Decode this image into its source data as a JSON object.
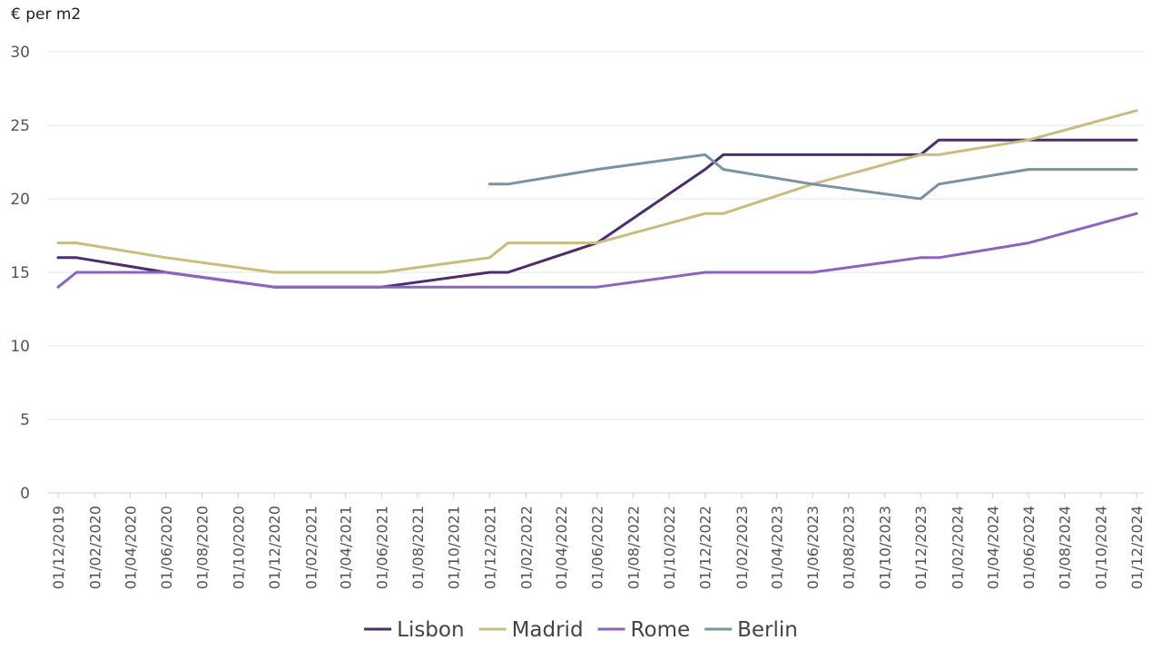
{
  "chart_data": {
    "type": "line",
    "ylabel": "€ per m2",
    "ylim": [
      0,
      30
    ],
    "yticks": [
      "0",
      "5",
      "10",
      "15",
      "20",
      "25",
      "30"
    ],
    "grid": true,
    "legend_position": "bottom",
    "x_tick_labels": [
      "01/12/2019",
      "01/02/2020",
      "01/04/2020",
      "01/06/2020",
      "01/08/2020",
      "01/10/2020",
      "01/12/2020",
      "01/02/2021",
      "01/04/2021",
      "01/06/2021",
      "01/08/2021",
      "01/10/2021",
      "01/12/2021",
      "01/02/2022",
      "01/04/2022",
      "01/06/2022",
      "01/08/2022",
      "01/10/2022",
      "01/12/2022",
      "01/02/2023",
      "01/04/2023",
      "01/06/2023",
      "01/08/2023",
      "01/10/2023",
      "01/12/2023",
      "01/02/2024",
      "01/04/2024",
      "01/06/2024",
      "01/08/2024",
      "01/10/2024",
      "01/12/2024"
    ],
    "series": [
      {
        "name": "Lisbon",
        "color": "#4d2c6b",
        "points": [
          {
            "x": "01/12/2019",
            "y": 16
          },
          {
            "x": "01/01/2020",
            "y": 16
          },
          {
            "x": "01/06/2020",
            "y": 15
          },
          {
            "x": "01/12/2020",
            "y": 14
          },
          {
            "x": "01/06/2021",
            "y": 14
          },
          {
            "x": "01/12/2021",
            "y": 15
          },
          {
            "x": "01/01/2022",
            "y": 15
          },
          {
            "x": "01/06/2022",
            "y": 17
          },
          {
            "x": "01/12/2022",
            "y": 22
          },
          {
            "x": "01/01/2023",
            "y": 23
          },
          {
            "x": "01/12/2023",
            "y": 23
          },
          {
            "x": "01/01/2024",
            "y": 24
          },
          {
            "x": "01/12/2024",
            "y": 24
          }
        ]
      },
      {
        "name": "Madrid",
        "color": "#c9bd7e",
        "points": [
          {
            "x": "01/12/2019",
            "y": 17
          },
          {
            "x": "01/01/2020",
            "y": 17
          },
          {
            "x": "01/06/2020",
            "y": 16
          },
          {
            "x": "01/12/2020",
            "y": 15
          },
          {
            "x": "01/06/2021",
            "y": 15
          },
          {
            "x": "01/12/2021",
            "y": 16
          },
          {
            "x": "01/01/2022",
            "y": 17
          },
          {
            "x": "01/06/2022",
            "y": 17
          },
          {
            "x": "01/12/2022",
            "y": 19
          },
          {
            "x": "01/01/2023",
            "y": 19
          },
          {
            "x": "01/06/2023",
            "y": 21
          },
          {
            "x": "01/12/2023",
            "y": 23
          },
          {
            "x": "01/01/2024",
            "y": 23
          },
          {
            "x": "01/06/2024",
            "y": 24
          },
          {
            "x": "01/12/2024",
            "y": 26
          }
        ]
      },
      {
        "name": "Rome",
        "color": "#8e62c2",
        "points": [
          {
            "x": "01/12/2019",
            "y": 14
          },
          {
            "x": "01/01/2020",
            "y": 15
          },
          {
            "x": "01/06/2020",
            "y": 15
          },
          {
            "x": "01/12/2020",
            "y": 14
          },
          {
            "x": "01/06/2022",
            "y": 14
          },
          {
            "x": "01/12/2022",
            "y": 15
          },
          {
            "x": "01/06/2023",
            "y": 15
          },
          {
            "x": "01/12/2023",
            "y": 16
          },
          {
            "x": "01/01/2024",
            "y": 16
          },
          {
            "x": "01/06/2024",
            "y": 17
          },
          {
            "x": "01/12/2024",
            "y": 19
          }
        ]
      },
      {
        "name": "Berlin",
        "color": "#7a93a3",
        "points": [
          {
            "x": "01/12/2021",
            "y": 21
          },
          {
            "x": "01/01/2022",
            "y": 21
          },
          {
            "x": "01/06/2022",
            "y": 22
          },
          {
            "x": "01/12/2022",
            "y": 23
          },
          {
            "x": "01/01/2023",
            "y": 22
          },
          {
            "x": "01/06/2023",
            "y": 21
          },
          {
            "x": "01/12/2023",
            "y": 20
          },
          {
            "x": "01/01/2024",
            "y": 21
          },
          {
            "x": "01/06/2024",
            "y": 22
          },
          {
            "x": "01/12/2024",
            "y": 22
          }
        ]
      }
    ]
  }
}
